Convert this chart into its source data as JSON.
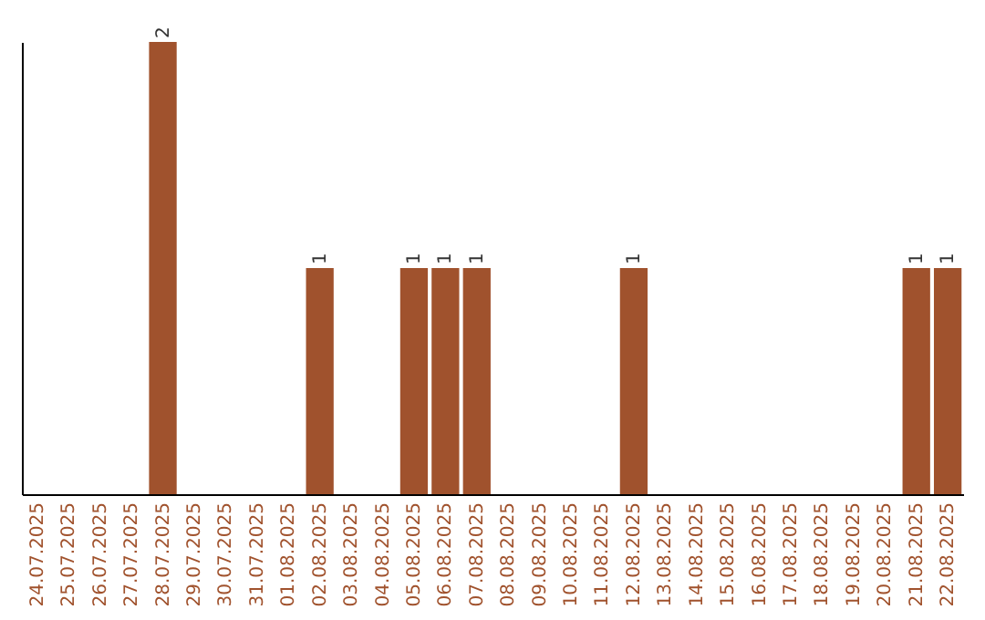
{
  "chart_data": {
    "type": "bar",
    "categories": [
      "24.07.2025",
      "25.07.2025",
      "26.07.2025",
      "27.07.2025",
      "28.07.2025",
      "29.07.2025",
      "30.07.2025",
      "31.07.2025",
      "01.08.2025",
      "02.08.2025",
      "03.08.2025",
      "04.08.2025",
      "05.08.2025",
      "06.08.2025",
      "07.08.2025",
      "08.08.2025",
      "09.08.2025",
      "10.08.2025",
      "11.08.2025",
      "12.08.2025",
      "13.08.2025",
      "14.08.2025",
      "15.08.2025",
      "16.08.2025",
      "17.08.2025",
      "18.08.2025",
      "19.08.2025",
      "20.08.2025",
      "21.08.2025",
      "22.08.2025"
    ],
    "values": [
      0,
      0,
      0,
      0,
      2,
      0,
      0,
      0,
      0,
      1,
      0,
      0,
      1,
      1,
      1,
      0,
      0,
      0,
      0,
      1,
      0,
      0,
      0,
      0,
      0,
      0,
      0,
      0,
      1,
      1
    ],
    "value_labels": [
      null,
      null,
      null,
      null,
      "2",
      null,
      null,
      null,
      null,
      "1",
      null,
      null,
      "1",
      "1",
      "1",
      null,
      null,
      null,
      null,
      "1",
      null,
      null,
      null,
      null,
      null,
      null,
      null,
      null,
      "1",
      "1"
    ],
    "color": "#a0522d",
    "tick_labels": "x"
  }
}
